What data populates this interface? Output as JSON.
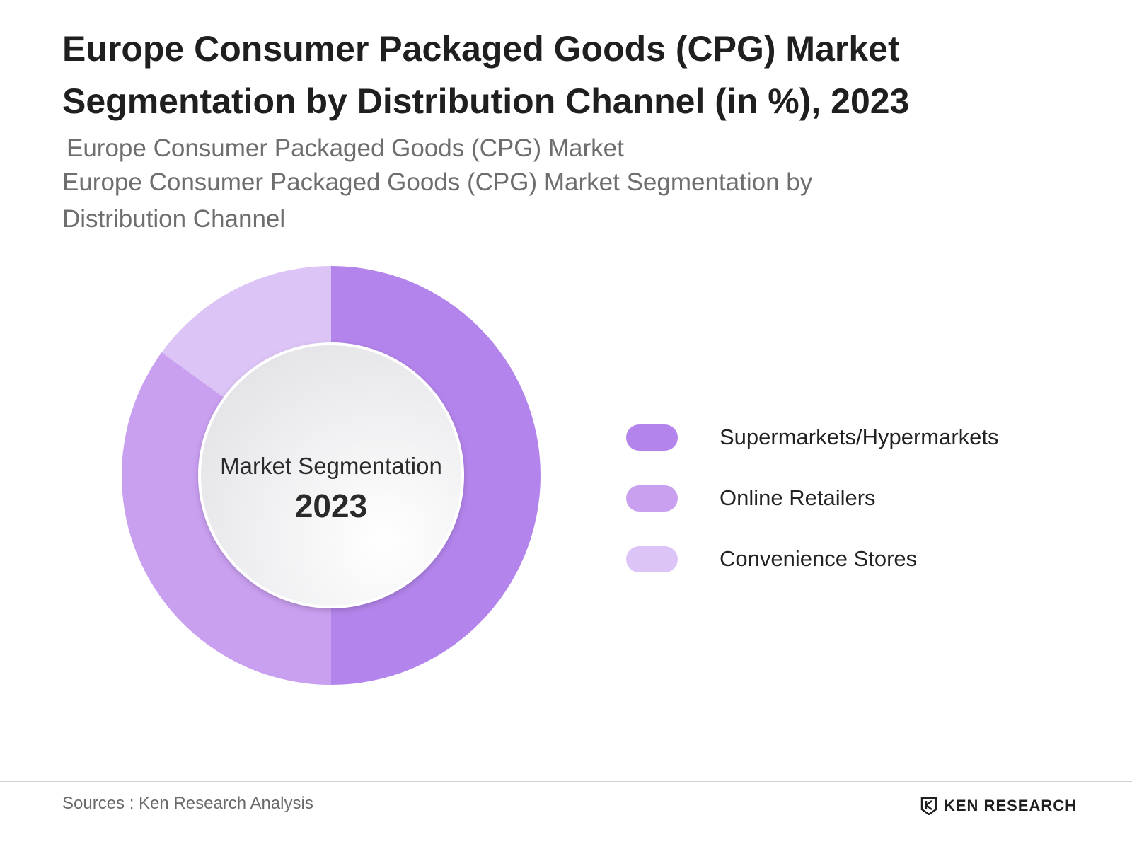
{
  "title": "Europe Consumer Packaged Goods (CPG) Market Segmentation by Distribution Channel (in %), 2023",
  "subtitle_line1": "Europe Consumer Packaged Goods (CPG) Market",
  "subtitle_line2": "Europe Consumer Packaged Goods (CPG) Market Segmentation by Distribution Channel",
  "center": {
    "label": "Market Segmentation",
    "year": "2023"
  },
  "source": "Sources : Ken Research Analysis",
  "brand": {
    "name": "KEN RESEARCH",
    "icon": "ken-research-logo-icon"
  },
  "chart_data": {
    "type": "pie",
    "categories": [
      "Supermarkets/Hypermarkets",
      "Online Retailers",
      "Convenience Stores"
    ],
    "values": [
      50,
      35,
      15
    ],
    "colors": [
      "#b384eb",
      "#c99ff0",
      "#dcc4f6"
    ],
    "legend_position": "right"
  }
}
